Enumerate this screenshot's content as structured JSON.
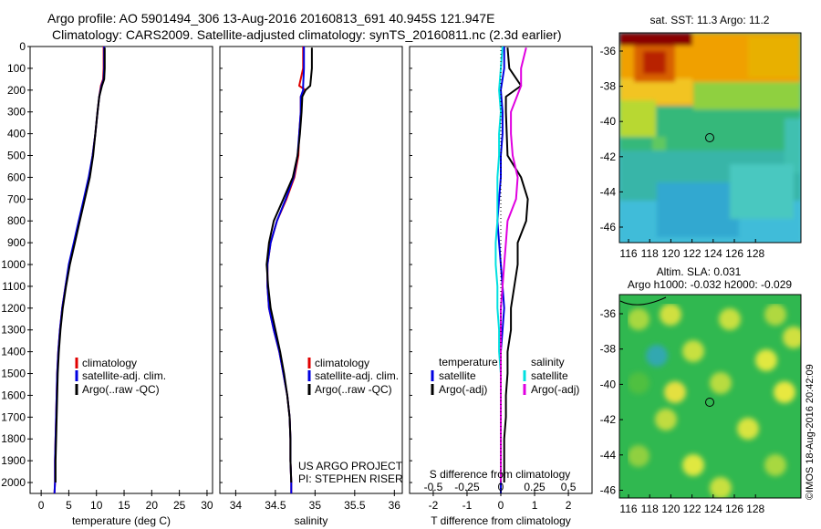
{
  "header": {
    "line1": "Argo profile: AO 5901494_306 13-Aug-2016 20160813_691 40.945S 121.947E",
    "line2": "Climatology: CARS2009. Satellite-adjusted climatology: synTS_20160811.nc (2.3d earlier)"
  },
  "colors": {
    "climatology": "#e00000",
    "satellite": "#0000e0",
    "argo": "#000000",
    "s_satellite": "#00e0e0",
    "s_argo": "#e000e0"
  },
  "right_panels": {
    "sst_title": "sat. SST: 11.3 Argo: 11.2",
    "sla_title_1": "Altim. SLA: 0.031",
    "sla_title_2": "Argo h1000: -0.032 h2000: -0.029",
    "lat_ticks": [
      "-36",
      "-38",
      "-40",
      "-42",
      "-44",
      "-46"
    ],
    "lon_ticks": [
      "116",
      "118",
      "120",
      "122",
      "124",
      "126",
      "128"
    ],
    "stamp": "©IMOS 18-Aug-2016 20:42:09"
  },
  "chart_data": [
    {
      "type": "line",
      "panel": "temperature",
      "xlabel": "temperature (deg C)",
      "ylabel": "",
      "xlim": [
        -2,
        31
      ],
      "ylim": [
        2050,
        0
      ],
      "xticks": [
        0,
        5,
        10,
        15,
        20,
        25,
        30
      ],
      "yticks": [
        0,
        100,
        200,
        300,
        400,
        500,
        600,
        700,
        800,
        900,
        1000,
        1100,
        1200,
        1300,
        1400,
        1500,
        1600,
        1700,
        1800,
        1900,
        2000
      ],
      "legend": [
        "climatology",
        "satellite-adj. clim.",
        "Argo(..raw -QC)"
      ],
      "legend_position": "lower-right",
      "series": [
        {
          "name": "climatology",
          "color": "#e00000",
          "x": [
            11.3,
            11.3,
            11.2,
            10.8,
            10.5,
            10.2,
            9.8,
            9.3,
            8.7,
            7.8,
            6.9,
            6.0,
            5.1,
            4.4,
            3.8,
            3.4,
            3.1,
            2.9,
            2.8,
            2.7,
            2.6,
            2.5,
            2.5,
            2.4
          ],
          "y": [
            0,
            100,
            150,
            180,
            230,
            300,
            400,
            500,
            600,
            700,
            800,
            900,
            1000,
            1100,
            1200,
            1300,
            1400,
            1500,
            1600,
            1700,
            1800,
            1900,
            2000,
            2050
          ]
        },
        {
          "name": "satellite-adj. clim.",
          "color": "#0000e0",
          "x": [
            11.4,
            11.4,
            11.3,
            10.9,
            10.5,
            10.2,
            9.8,
            9.3,
            8.6,
            7.7,
            6.8,
            5.9,
            5.0,
            4.4,
            3.8,
            3.4,
            3.1,
            2.9,
            2.8,
            2.7,
            2.6,
            2.5,
            2.5,
            2.4
          ],
          "y": [
            0,
            100,
            150,
            180,
            230,
            300,
            400,
            500,
            600,
            700,
            800,
            900,
            1000,
            1100,
            1200,
            1300,
            1400,
            1500,
            1600,
            1700,
            1800,
            1900,
            2000,
            2050
          ]
        },
        {
          "name": "Argo(..raw -QC)",
          "color": "#000000",
          "x": [
            11.5,
            11.5,
            11.4,
            11.0,
            10.5,
            10.2,
            9.8,
            9.4,
            8.8,
            7.9,
            7.0,
            6.1,
            5.2,
            4.5,
            3.9,
            3.5,
            3.2,
            3.0,
            2.9,
            2.8,
            2.7,
            2.6,
            2.6
          ],
          "y": [
            5,
            100,
            150,
            180,
            230,
            300,
            400,
            500,
            600,
            700,
            800,
            900,
            1000,
            1100,
            1200,
            1300,
            1400,
            1500,
            1600,
            1700,
            1800,
            1900,
            2000
          ]
        }
      ]
    },
    {
      "type": "line",
      "panel": "salinity",
      "xlabel": "salinity",
      "ylabel": "",
      "xlim": [
        33.8,
        36.1
      ],
      "ylim": [
        2050,
        0
      ],
      "xticks": [
        34,
        34.5,
        35,
        35.5,
        36
      ],
      "legend": [
        "climatology",
        "satellite-adj. clim.",
        "Argo(..raw -QC)"
      ],
      "legend_position": "lower-right",
      "annotation_1": "US ARGO PROJECT",
      "annotation_2": "PI: STEPHEN RISER",
      "series": [
        {
          "name": "climatology",
          "color": "#e00000",
          "x": [
            34.85,
            34.85,
            34.8,
            34.88,
            34.82,
            34.82,
            34.8,
            34.79,
            34.74,
            34.64,
            34.52,
            34.44,
            34.4,
            34.4,
            34.42,
            34.48,
            34.55,
            34.6,
            34.65,
            34.68,
            34.69,
            34.69,
            34.7,
            34.7
          ],
          "y": [
            0,
            100,
            180,
            200,
            230,
            300,
            400,
            500,
            600,
            700,
            800,
            900,
            1000,
            1100,
            1200,
            1300,
            1400,
            1500,
            1600,
            1700,
            1800,
            1900,
            2000,
            2050
          ]
        },
        {
          "name": "satellite-adj. clim.",
          "color": "#0000e0",
          "x": [
            34.86,
            34.86,
            34.85,
            34.85,
            34.82,
            34.82,
            34.8,
            34.78,
            34.73,
            34.63,
            34.52,
            34.44,
            34.4,
            34.4,
            34.42,
            34.48,
            34.55,
            34.6,
            34.65,
            34.68,
            34.69,
            34.69,
            34.7,
            34.7
          ],
          "y": [
            0,
            100,
            180,
            200,
            230,
            300,
            400,
            500,
            600,
            700,
            800,
            900,
            1000,
            1100,
            1200,
            1300,
            1400,
            1500,
            1600,
            1700,
            1800,
            1900,
            2000,
            2050
          ]
        },
        {
          "name": "Argo(..raw -QC)",
          "color": "#000000",
          "x": [
            34.96,
            34.96,
            34.94,
            34.88,
            34.84,
            34.83,
            34.81,
            34.78,
            34.72,
            34.6,
            34.48,
            34.42,
            34.39,
            34.41,
            34.44,
            34.5,
            34.56,
            34.61,
            34.65,
            34.68,
            34.69,
            34.69,
            34.7
          ],
          "y": [
            5,
            100,
            180,
            200,
            230,
            300,
            400,
            500,
            600,
            700,
            800,
            900,
            1000,
            1100,
            1200,
            1300,
            1400,
            1500,
            1600,
            1700,
            1800,
            1900,
            2000
          ]
        }
      ]
    },
    {
      "type": "line",
      "panel": "difference",
      "xlabel": "T difference from climatology",
      "xlabel_top": "S difference from climatology",
      "ylabel": "",
      "xlim": [
        -2.7,
        2.7
      ],
      "ylim": [
        2050,
        0
      ],
      "xticks": [
        -2,
        -1,
        0,
        1,
        2
      ],
      "xticks_top": [
        "-0.5",
        "-0.25",
        "0",
        "0.25",
        "0.5"
      ],
      "legend_left_title": "temperature",
      "legend_right_title": "salinity",
      "legend": [
        "satellite",
        "Argo(-adj)",
        "satellite",
        "Argo(-adj)"
      ],
      "legend_position": "lower-center",
      "series": [
        {
          "name": "satellite",
          "color": "#0000e0",
          "x": [
            0.1,
            0.1,
            0.0,
            0.05,
            0.05,
            0.0,
            0.0,
            -0.05,
            -0.1,
            -0.05,
            0.0,
            0.05,
            0.1,
            0.05,
            0.0,
            0.0,
            0.0,
            0.0,
            0.0,
            0.0,
            0.0,
            0.0
          ],
          "y": [
            0,
            100,
            200,
            300,
            400,
            500,
            600,
            700,
            800,
            900,
            1000,
            1100,
            1200,
            1300,
            1400,
            1500,
            1600,
            1700,
            1800,
            1900,
            2000,
            2050
          ]
        },
        {
          "name": "Argo(-adj)",
          "color": "#000000",
          "x": [
            0.2,
            0.25,
            0.6,
            0.15,
            0.15,
            0.2,
            0.6,
            0.8,
            0.75,
            0.5,
            0.5,
            0.4,
            0.3,
            0.3,
            0.2,
            0.2,
            0.15,
            0.15,
            0.1,
            0.1,
            0.1
          ],
          "y": [
            5,
            100,
            180,
            230,
            300,
            500,
            600,
            700,
            800,
            900,
            1000,
            1100,
            1200,
            1300,
            1400,
            1500,
            1600,
            1700,
            1800,
            1900,
            2000
          ]
        },
        {
          "name": "satellite",
          "color": "#00e0e0",
          "x": [
            0.05,
            0.0,
            -0.05,
            0.0,
            -0.05,
            -0.05,
            -0.1,
            -0.1,
            -0.1,
            -0.15,
            -0.15,
            -0.1,
            -0.1,
            -0.05,
            -0.05,
            0.0,
            0.0,
            0.0,
            0.0,
            0.0,
            0.0
          ],
          "y": [
            0,
            100,
            200,
            300,
            400,
            500,
            600,
            700,
            800,
            900,
            1000,
            1100,
            1200,
            1300,
            1400,
            1500,
            1600,
            1700,
            1800,
            1900,
            2000
          ]
        },
        {
          "name": "Argo(-adj)",
          "color": "#e000e0",
          "x": [
            0.75,
            0.6,
            0.6,
            0.3,
            0.3,
            0.35,
            0.5,
            0.45,
            0.2,
            0.15,
            0.1,
            0.05,
            0.0,
            0.0,
            0.0,
            0.0,
            0.0,
            0.0,
            0.0,
            0.0,
            0.0
          ],
          "y": [
            5,
            100,
            180,
            300,
            400,
            500,
            600,
            700,
            800,
            900,
            1000,
            1100,
            1200,
            1300,
            1400,
            1500,
            1600,
            1700,
            1800,
            1900,
            2000
          ]
        }
      ]
    }
  ]
}
